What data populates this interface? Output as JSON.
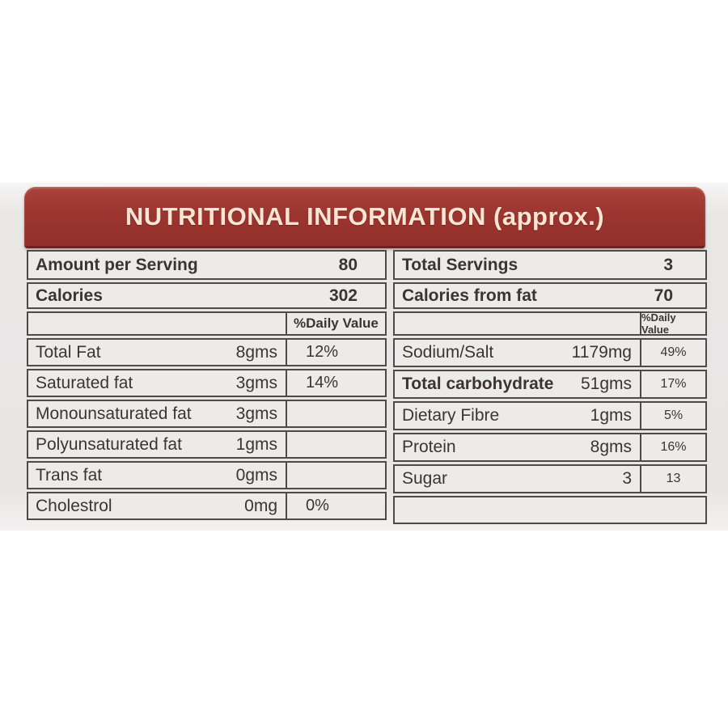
{
  "header": {
    "title": "NUTRITIONAL INFORMATION (approx.)"
  },
  "colors": {
    "band_background": "#9c352f",
    "band_text": "#f8e5d4",
    "table_border": "#4f4a45",
    "cell_background": "#edebe9",
    "panel_background": "#e8e6e5",
    "text": "#3a3532"
  },
  "left_table": {
    "summary": [
      {
        "label": "Amount per Serving",
        "value": "80"
      },
      {
        "label": "Calories",
        "value": "302"
      }
    ],
    "dv_header": "%Daily Value",
    "rows": [
      {
        "name": "Total Fat",
        "amount": "8gms",
        "dv": "12%"
      },
      {
        "name": "Saturated fat",
        "amount": "3gms",
        "dv": "14%"
      },
      {
        "name": "Monounsaturated fat",
        "amount": "3gms",
        "dv": ""
      },
      {
        "name": "Polyunsaturated fat",
        "amount": "1gms",
        "dv": ""
      },
      {
        "name": "Trans fat",
        "amount": "0gms",
        "dv": ""
      },
      {
        "name": "Cholestrol",
        "amount": "0mg",
        "dv": "0%"
      }
    ]
  },
  "right_table": {
    "summary": [
      {
        "label": "Total Servings",
        "value": "3"
      },
      {
        "label": "Calories from fat",
        "value": "70"
      }
    ],
    "dv_header": "%Daily Value",
    "rows": [
      {
        "name": "Sodium/Salt",
        "amount": "1179mg",
        "dv": "49%"
      },
      {
        "name": "Total carbohydrate",
        "amount": "51gms",
        "dv": "17%"
      },
      {
        "name": "Dietary Fibre",
        "amount": "1gms",
        "dv": "5%"
      },
      {
        "name": "Protein",
        "amount": "8gms",
        "dv": "16%"
      },
      {
        "name": "Sugar",
        "amount": "3",
        "dv": "13"
      }
    ]
  }
}
